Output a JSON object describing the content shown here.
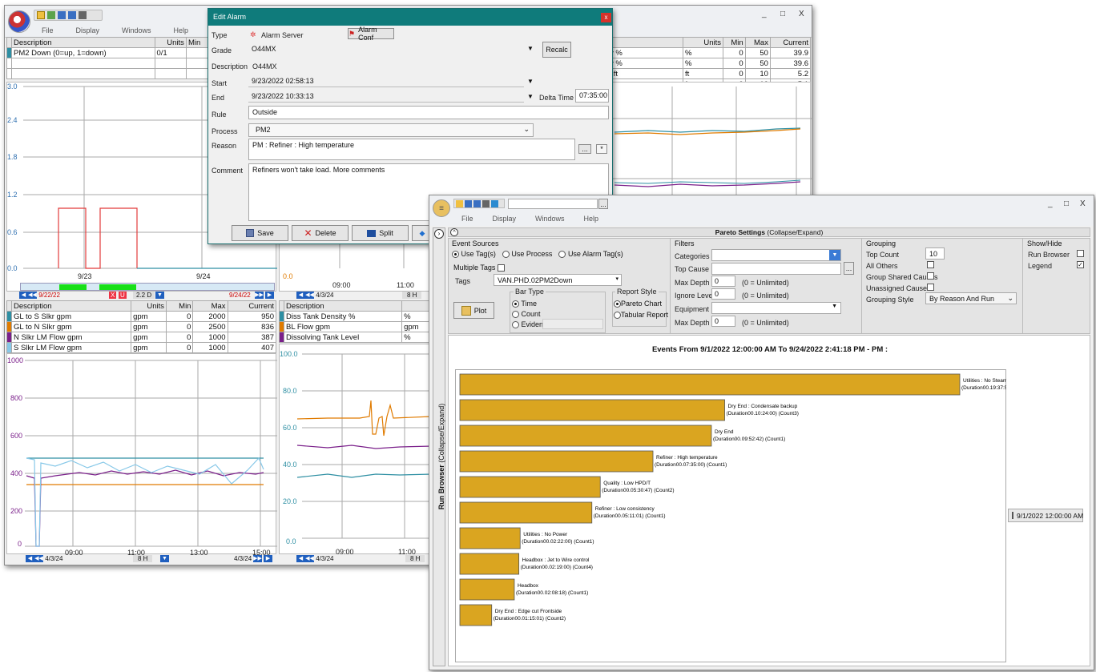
{
  "main_window": {
    "menu": [
      "File",
      "Display",
      "Windows",
      "Help"
    ],
    "controls": [
      "_",
      "□",
      "X"
    ],
    "top_table": {
      "headers": [
        "Description",
        "Units",
        "Min"
      ],
      "rows": [
        [
          "PM2 Down (0=up, 1=down)",
          "0/1",
          ""
        ]
      ]
    },
    "right_table": {
      "headers": [
        "Units",
        "Min",
        "Max",
        "Current"
      ],
      "rows": [
        [
          "y %",
          "%",
          "0",
          "50",
          "39.9"
        ],
        [
          "y %",
          "%",
          "0",
          "50",
          "39.6"
        ],
        [
          "l ft",
          "ft",
          "0",
          "10",
          "5.2"
        ],
        [
          "ft",
          "ft",
          "0",
          "10",
          "5.1"
        ]
      ]
    },
    "trend1": {
      "yticks": [
        "3.0",
        "2.4",
        "1.8",
        "1.2",
        "0.6",
        "0.0"
      ],
      "xticks": [
        "9/23",
        "9/24"
      ],
      "nav_left": "9/22/22",
      "nav_right": "9/24/22",
      "span": "2.2 D",
      "xu": "X",
      "uu": "U"
    },
    "trend2": {
      "yticks": [
        "0.0"
      ],
      "xticks": [
        "09:00",
        "11:00"
      ],
      "nav_date": "4/3/24",
      "span": "8 H"
    },
    "bottom_left_table": {
      "headers": [
        "Description",
        "Units",
        "Min",
        "Max",
        "Current"
      ],
      "rows": [
        [
          "GL to S Slkr gpm",
          "gpm",
          "0",
          "2000",
          "950"
        ],
        [
          "GL to N Slkr gpm",
          "gpm",
          "0",
          "2500",
          "836"
        ],
        [
          "N Slkr LM Flow gpm",
          "gpm",
          "0",
          "1000",
          "387"
        ],
        [
          "S Slkr LM Flow gpm",
          "gpm",
          "0",
          "1000",
          "407"
        ]
      ],
      "colors": [
        "#2e8fa3",
        "#e07b00",
        "#7a1f8a",
        "#87c8e8"
      ]
    },
    "trend3": {
      "yticks": [
        "1000",
        "800",
        "600",
        "400",
        "200",
        "0"
      ],
      "xticks": [
        "09:00",
        "11:00",
        "13:00",
        "15:00"
      ],
      "nav_left": "4/3/24",
      "nav_right": "4/3/24",
      "span": "8 H"
    },
    "bottom_mid_table": {
      "headers": [
        "Description"
      ],
      "rows": [
        [
          "Diss Tank Density %",
          "%"
        ],
        [
          "BL Flow gpm",
          "gpm"
        ],
        [
          "Dissolving Tank Level",
          "%"
        ]
      ],
      "colors": [
        "#2e8fa3",
        "#e07b00",
        "#7a1f8a"
      ]
    },
    "trend4": {
      "yticks": [
        "100.0",
        "80.0",
        "60.0",
        "40.0",
        "20.0",
        "0.0"
      ],
      "xticks": [
        "09:00",
        "11:00"
      ],
      "nav_date": "4/3/24",
      "span": "8 H"
    }
  },
  "edit_alarm": {
    "title": "Edit Alarm",
    "close": "x",
    "type_label": "Type",
    "type_value": "Alarm Server",
    "alarm_conf": "Alarm Conf",
    "grade_label": "Grade",
    "grade_value": "O44MX",
    "recalc": "Recalc",
    "description_label": "Description",
    "description_value": "O44MX",
    "start_label": "Start",
    "start_value": "9/23/2022 02:58:13",
    "end_label": "End",
    "end_value": "9/23/2022 10:33:13",
    "delta_label": "Delta Time",
    "delta_value": "07:35:00",
    "rule_label": "Rule",
    "rule_value": "Outside",
    "process_label": "Process",
    "process_value": "PM2",
    "reason_label": "Reason",
    "reason_value": "PM : Refiner : High temperature",
    "ellipsis": "...",
    "asterisk": "*",
    "comment_label": "Comment",
    "comment_value": "Refiners won't take load. More comments",
    "save": "Save",
    "delete": "Delete",
    "split": "Split"
  },
  "pareto_window": {
    "menu": [
      "File",
      "Display",
      "Windows",
      "Help"
    ],
    "controls": [
      "_",
      "□",
      "X"
    ],
    "dots": "...",
    "settings_title": "Pareto Settings",
    "settings_hint": "(Collapse/Expand)",
    "run_browser_label": "Run Browser",
    "run_browser_hint": "(Collapse/Expand)",
    "event_sources": {
      "title": "Event Sources",
      "options": [
        "Use Tag(s)",
        "Use Process",
        "Use Alarm Tag(s)"
      ],
      "multiple_tags": "Multiple Tags",
      "tags_label": "Tags",
      "tags_value": "VAN.PHD.02PM2Down",
      "plot": "Plot"
    },
    "bar_type": {
      "title": "Bar Type",
      "options": [
        "Time",
        "Count",
        "Evidence"
      ]
    },
    "report_style": {
      "title": "Report Style",
      "options": [
        "Pareto Chart",
        "Tabular Report"
      ]
    },
    "filters": {
      "title": "Filters",
      "categories": "Categories",
      "top_cause": "Top Cause",
      "max_depth": "Max Depth",
      "max_depth_value": "0",
      "unlimited": "(0 = Unlimited)",
      "ignore_levels": "Ignore Levels",
      "ignore_levels_value": "0",
      "equipment": "Equipment",
      "max_depth2": "Max Depth",
      "max_depth2_value": "0"
    },
    "grouping": {
      "title": "Grouping",
      "top_count": "Top Count",
      "top_count_value": "10",
      "all_others": "All Others",
      "group_shared": "Group Shared Causes",
      "unassigned": "Unassigned Causes",
      "style_label": "Grouping Style",
      "style_value": "By Reason And Run"
    },
    "show_hide": {
      "title": "Show/Hide",
      "run_browser": "Run Browser",
      "legend": "Legend"
    },
    "legend_entry": "9/1/2022 12:00:00 AM"
  },
  "chart_data": {
    "type": "bar",
    "orientation": "horizontal",
    "title": "Events From 9/1/2022 12:00:00 AM To 9/24/2022 2:41:18 PM - PM :",
    "bar_color": "#daa520",
    "bars": [
      {
        "label": "Utilities : No Steam",
        "detail": "(Duration00.19:37:59) (Count2)",
        "hours": 19.633
      },
      {
        "label": "Dry End : Condensate backup",
        "detail": "(Duration00.10:24:00) (Count3)",
        "hours": 10.4
      },
      {
        "label": "Dry End",
        "detail": "(Duration00.09:52:42) (Count1)",
        "hours": 9.878
      },
      {
        "label": "Refiner : High temperature",
        "detail": "(Duration00.07:35:00) (Count1)",
        "hours": 7.583
      },
      {
        "label": "Quality : Low HPD/T",
        "detail": "(Duration00.05:30:47) (Count2)",
        "hours": 5.513
      },
      {
        "label": "Refiner : Low consistency",
        "detail": "(Duration00.05:11:01) (Count1)",
        "hours": 5.184
      },
      {
        "label": "Utilities : No Power",
        "detail": "(Duration00.02:22:00) (Count1)",
        "hours": 2.367
      },
      {
        "label": "Headbox : Jet to Wire control",
        "detail": "(Duration00.02:19:00) (Count4)",
        "hours": 2.317
      },
      {
        "label": "Headbox",
        "detail": "(Duration00.02:08:18) (Count1)",
        "hours": 2.138
      },
      {
        "label": "Dry End : Edge cut Frontside",
        "detail": "(Duration00.01:15:01) (Count2)",
        "hours": 1.25
      }
    ]
  }
}
